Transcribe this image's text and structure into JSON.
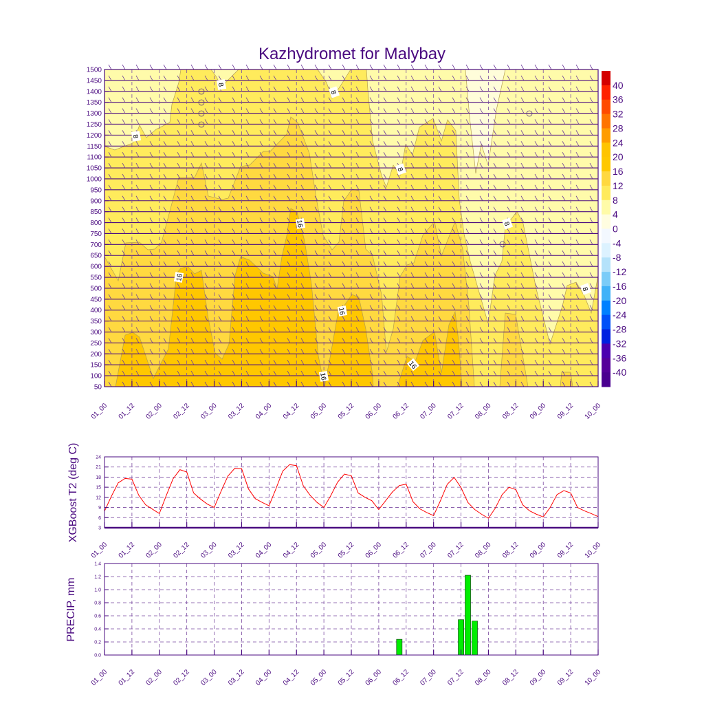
{
  "chart_data": [
    {
      "type": "heatmap",
      "subtype": "filled contour with wind barbs",
      "title": "Kazhydromet for Malybay",
      "y_ticks": [
        1500,
        1450,
        1400,
        1350,
        1300,
        1250,
        1200,
        1150,
        1100,
        1050,
        1000,
        950,
        900,
        850,
        800,
        750,
        700,
        650,
        600,
        550,
        500,
        450,
        400,
        350,
        300,
        250,
        200,
        150,
        100,
        50
      ],
      "ylim": [
        50,
        1500
      ],
      "x_ticks": [
        "01_00",
        "01_12",
        "02_00",
        "02_12",
        "03_00",
        "03_12",
        "04_00",
        "04_12",
        "05_00",
        "05_12",
        "06_00",
        "06_12",
        "07_00",
        "07_12",
        "08_00",
        "08_12",
        "09_00",
        "09_12",
        "10_00"
      ],
      "contour_labels": [
        "8",
        "8",
        "8",
        "8",
        "8",
        "8",
        "16",
        "16",
        "16",
        "16",
        "16"
      ],
      "colorbar": {
        "labels": [
          "40",
          "36",
          "32",
          "28",
          "24",
          "20",
          "16",
          "12",
          "8",
          "4",
          "0",
          "-4",
          "-8",
          "-12",
          "-16",
          "-20",
          "-24",
          "-28",
          "-32",
          "-36",
          "-40"
        ],
        "colors": [
          "#D40000",
          "#FF2200",
          "#FF4A00",
          "#FF7400",
          "#FF9C00",
          "#FFC400",
          "#FFC800",
          "#FFD840",
          "#FFEA5C",
          "#FFFBA8",
          "#FFFDE0",
          "#F3F8FF",
          "#DCF2FF",
          "#B4E2FA",
          "#7ACCF8",
          "#40B2F8",
          "#0080FF",
          "#0050F8",
          "#0020E0",
          "#4A00B0",
          "#55009A",
          "#4A0090"
        ]
      },
      "fill_colors": {
        "4-8": "#FFFBAA",
        "0-4": "#FFFDDA",
        "8-12": "#FFEB5C",
        "12-16": "#FFD940",
        "16-20": "#FFC700"
      }
    },
    {
      "type": "line",
      "ylabel": "XGBoost T2 (deg C)",
      "ylim": [
        3,
        24
      ],
      "y_ticks": [
        "3",
        "6",
        "9",
        "12",
        "15",
        "18",
        "21",
        "24"
      ],
      "x_ticks": [
        "01_00",
        "01_12",
        "02_00",
        "02_12",
        "03_00",
        "03_12",
        "04_00",
        "04_12",
        "05_00",
        "05_12",
        "06_00",
        "06_12",
        "07_00",
        "07_12",
        "08_00",
        "08_12",
        "09_00",
        "09_12",
        "10_00"
      ],
      "x_step_hours": 3,
      "color": "#FF0000",
      "values": [
        7.9,
        12.3,
        16.3,
        17.6,
        17.4,
        12.6,
        9.8,
        8.5,
        7.2,
        12.5,
        17.5,
        20.2,
        19.5,
        13.3,
        11.5,
        10.0,
        9.0,
        13.8,
        18.3,
        20.6,
        20.5,
        14.5,
        11.6,
        10.5,
        9.5,
        14.5,
        19.8,
        21.7,
        21.4,
        15.4,
        12.6,
        10.5,
        9.0,
        12.5,
        16.5,
        18.9,
        18.4,
        13.3,
        12.0,
        11.0,
        8.4,
        11.0,
        13.6,
        15.5,
        15.9,
        10.7,
        8.6,
        7.5,
        6.6,
        11.0,
        15.9,
        17.9,
        14.9,
        10.5,
        8.4,
        7.0,
        5.8,
        8.8,
        12.8,
        15.0,
        14.3,
        9.8,
        8.0,
        7.0,
        6.2,
        9.0,
        12.8,
        14.0,
        13.3,
        9.0,
        8.0,
        7.2,
        6.3
      ]
    },
    {
      "type": "bar",
      "ylabel": "PRECIP, mm",
      "ylim": [
        0,
        1.4
      ],
      "y_ticks": [
        "0.0",
        "0.2",
        "0.4",
        "0.6",
        "0.8",
        "1.0",
        "1.2",
        "1.4"
      ],
      "x_ticks": [
        "01_00",
        "01_12",
        "02_00",
        "02_12",
        "03_00",
        "03_12",
        "04_00",
        "04_12",
        "05_00",
        "05_12",
        "06_00",
        "06_12",
        "07_00",
        "07_12",
        "08_00",
        "08_12",
        "09_00",
        "09_12",
        "10_00"
      ],
      "times": [
        "06_09",
        "07_12",
        "07_15",
        "07_18"
      ],
      "values": [
        0.24,
        0.54,
        1.22,
        0.52
      ],
      "color": "#00EE00"
    }
  ]
}
